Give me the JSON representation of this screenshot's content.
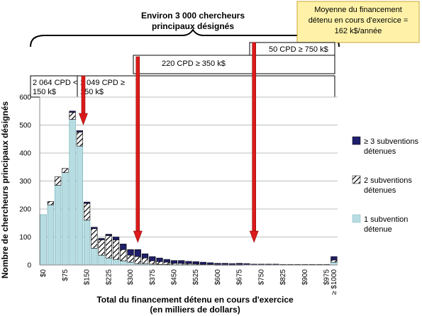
{
  "header": {
    "researchers_line1": "Environ 3 000 chercheurs",
    "researchers_line2": "principaux désignés",
    "avg_line1": "Moyenne du financement",
    "avg_line2": "détenu en cours d'exercice =",
    "avg_line3": "162 k$/année"
  },
  "segments": [
    {
      "line1": "2 064 CPD <",
      "line2": "150 k$"
    },
    {
      "line1": "1 049 CPD ≥",
      "line2": "150 k$"
    },
    {
      "line1": "220 CPD  ≥ 350 k$",
      "line2": ""
    },
    {
      "line1": "50 CPD  ≥ 750 k$",
      "line2": ""
    }
  ],
  "colors": {
    "one_grant": "#b7dde2",
    "two_grants_hatch": "#000000",
    "three_grants": "#1f1f6b",
    "arrow": "#dd1a1a",
    "avg_box_fill": "#fff2a8",
    "avg_box_border": "#c8a636"
  },
  "chart_data": {
    "type": "bar",
    "stacked": true,
    "ylabel": "Nombre de chercheurs principaux désignés",
    "xlabel_line1": "Total du financement détenu en cours d'exercice",
    "xlabel_line2": "(en milliers de dollars)",
    "ylim": [
      0,
      600
    ],
    "y_ticks": [
      0,
      100,
      200,
      300,
      400,
      500,
      600
    ],
    "x_tick_labels": [
      "$0",
      "$75",
      "$150",
      "$225",
      "$300",
      "$375",
      "$450",
      "$525",
      "$600",
      "$675",
      "$750",
      "$825",
      "$900",
      "$975",
      "≥ $1000"
    ],
    "bin_width_k": 25,
    "bins_count": 41,
    "series": [
      {
        "name": "1 subvention détenue",
        "values": [
          180,
          215,
          285,
          330,
          520,
          425,
          160,
          60,
          35,
          25,
          20,
          15,
          10,
          5,
          5,
          3,
          2,
          2,
          1,
          1,
          1,
          1,
          0,
          0,
          0,
          0,
          0,
          0,
          0,
          0,
          0,
          0,
          0,
          0,
          0,
          0,
          0,
          0,
          0,
          0,
          10
        ]
      },
      {
        "name": "2 subventions détenues",
        "values": [
          0,
          12,
          30,
          15,
          25,
          50,
          60,
          70,
          55,
          80,
          70,
          40,
          25,
          25,
          20,
          12,
          10,
          8,
          5,
          5,
          4,
          3,
          2,
          2,
          1,
          1,
          1,
          1,
          0,
          0,
          0,
          0,
          0,
          0,
          0,
          0,
          0,
          0,
          0,
          0,
          8
        ]
      },
      {
        "name": "≥ 3 subventions détenues",
        "values": [
          0,
          0,
          0,
          0,
          5,
          5,
          5,
          5,
          5,
          5,
          10,
          20,
          20,
          25,
          15,
          15,
          13,
          10,
          10,
          10,
          8,
          8,
          8,
          6,
          5,
          5,
          4,
          5,
          5,
          3,
          3,
          3,
          3,
          2,
          2,
          2,
          2,
          2,
          2,
          2,
          12
        ]
      }
    ],
    "legend_position": "right",
    "arrows_at_k": [
      150,
      350,
      750
    ]
  }
}
